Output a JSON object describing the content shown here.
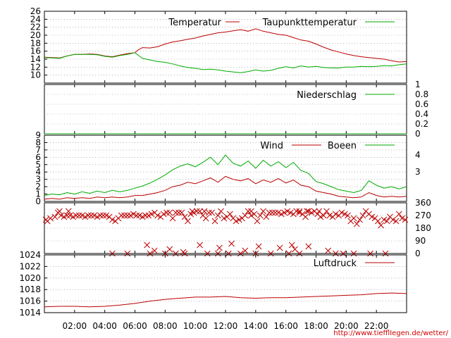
{
  "chart_data": [
    {
      "type": "line",
      "panel": "temperature",
      "ylim": [
        8,
        26
      ],
      "yticks": [
        10,
        12,
        14,
        16,
        18,
        20,
        22,
        24,
        26
      ],
      "grid": true,
      "legend_placement": "top-right",
      "series": [
        {
          "name": "Temperatur",
          "color": "#bb0000",
          "x": [
            0.0,
            0.5,
            1.0,
            1.5,
            2.0,
            2.5,
            3.0,
            3.5,
            4.0,
            4.5,
            5.0,
            5.5,
            6.0,
            6.2,
            6.5,
            7.0,
            7.5,
            8.0,
            8.5,
            9.0,
            9.5,
            10.0,
            10.5,
            11.0,
            11.5,
            12.0,
            12.5,
            13.0,
            13.5,
            14.0,
            14.5,
            15.0,
            15.5,
            16.0,
            16.5,
            17.0,
            17.5,
            18.0,
            18.5,
            19.0,
            19.5,
            20.0,
            20.5,
            21.0,
            21.5,
            22.0,
            22.5,
            23.0,
            23.5,
            24.0
          ],
          "y": [
            14.5,
            14.4,
            14.3,
            14.8,
            15.2,
            15.2,
            15.3,
            15.2,
            14.8,
            14.6,
            15.0,
            15.4,
            15.6,
            16.3,
            16.9,
            16.8,
            17.1,
            17.8,
            18.3,
            18.6,
            19.0,
            19.3,
            19.8,
            20.2,
            20.6,
            20.8,
            21.1,
            21.4,
            21.0,
            21.6,
            21.0,
            20.6,
            20.2,
            20.0,
            19.4,
            18.8,
            18.5,
            17.8,
            17.0,
            16.3,
            15.8,
            15.3,
            14.9,
            14.6,
            14.4,
            14.2,
            14.0,
            13.6,
            13.3,
            13.4
          ]
        },
        {
          "name": "Taupunkttemperatur",
          "color": "#00aa00",
          "x": [
            0.0,
            0.5,
            1.0,
            1.5,
            2.0,
            2.5,
            3.0,
            3.5,
            4.0,
            4.5,
            5.0,
            5.5,
            6.0,
            6.5,
            7.0,
            7.5,
            8.0,
            8.5,
            9.0,
            9.5,
            10.0,
            10.5,
            11.0,
            11.5,
            12.0,
            12.5,
            13.0,
            13.5,
            14.0,
            14.5,
            15.0,
            15.5,
            16.0,
            16.5,
            17.0,
            17.5,
            18.0,
            18.5,
            19.0,
            19.5,
            20.0,
            20.5,
            21.0,
            21.5,
            22.0,
            22.5,
            23.0,
            23.5,
            24.0
          ],
          "y": [
            14.4,
            14.3,
            14.2,
            14.8,
            15.2,
            15.2,
            15.2,
            15.1,
            14.7,
            14.5,
            14.9,
            15.2,
            15.6,
            14.2,
            13.8,
            13.4,
            13.2,
            12.8,
            12.3,
            11.9,
            11.7,
            11.4,
            11.5,
            11.3,
            11.0,
            10.8,
            10.6,
            10.9,
            11.3,
            11.0,
            11.2,
            11.7,
            12.1,
            11.8,
            12.3,
            12.0,
            12.2,
            11.9,
            11.8,
            11.8,
            12.0,
            12.0,
            12.2,
            12.1,
            12.2,
            12.4,
            12.3,
            12.6,
            12.8
          ]
        }
      ]
    },
    {
      "type": "line",
      "panel": "precipitation",
      "ylim": [
        0,
        1
      ],
      "yticks_right": [
        "1",
        "0.8",
        "0.6",
        "0.4",
        "0.2",
        "0"
      ],
      "grid": true,
      "legend_placement": "top-right",
      "series": [
        {
          "name": "Niederschlag",
          "color": "#00aa00",
          "x": [
            0,
            24
          ],
          "y": [
            0,
            0
          ]
        }
      ]
    },
    {
      "type": "line",
      "panel": "wind",
      "ylim": [
        0,
        9
      ],
      "yticks": [
        0,
        1,
        2,
        3,
        4,
        5,
        6,
        7,
        8,
        9
      ],
      "yticks_right": [
        "4",
        "3"
      ],
      "grid": true,
      "legend_placement": "top-right",
      "series": [
        {
          "name": "Wind",
          "color": "#bb0000",
          "x": [
            0.0,
            0.5,
            1.0,
            1.5,
            2.0,
            2.5,
            3.0,
            3.5,
            4.0,
            4.5,
            5.0,
            5.5,
            6.0,
            6.5,
            7.0,
            7.5,
            8.0,
            8.5,
            9.0,
            9.5,
            10.0,
            10.5,
            11.0,
            11.5,
            12.0,
            12.5,
            13.0,
            13.5,
            14.0,
            14.5,
            15.0,
            15.5,
            16.0,
            16.5,
            17.0,
            17.5,
            18.0,
            18.5,
            19.0,
            19.5,
            20.0,
            20.5,
            21.0,
            21.5,
            22.0,
            22.5,
            23.0,
            23.5,
            24.0
          ],
          "y": [
            0.3,
            0.4,
            0.3,
            0.5,
            0.4,
            0.5,
            0.4,
            0.6,
            0.5,
            0.6,
            0.5,
            0.6,
            0.8,
            0.8,
            1.0,
            1.2,
            1.5,
            2.0,
            2.2,
            2.6,
            2.4,
            2.8,
            3.2,
            2.6,
            3.4,
            3.0,
            2.8,
            3.1,
            2.4,
            2.9,
            2.6,
            3.1,
            2.5,
            2.9,
            2.2,
            2.0,
            1.4,
            1.2,
            1.0,
            0.7,
            0.6,
            0.5,
            0.6,
            1.2,
            0.8,
            0.6,
            0.7,
            0.6,
            0.7
          ]
        },
        {
          "name": "Boeen",
          "color": "#00aa00",
          "x": [
            0.0,
            0.5,
            1.0,
            1.5,
            2.0,
            2.5,
            3.0,
            3.5,
            4.0,
            4.5,
            5.0,
            5.5,
            6.0,
            6.5,
            7.0,
            7.5,
            8.0,
            8.5,
            9.0,
            9.5,
            10.0,
            10.5,
            11.0,
            11.5,
            12.0,
            12.5,
            13.0,
            13.5,
            14.0,
            14.5,
            15.0,
            15.5,
            16.0,
            16.5,
            17.0,
            17.5,
            18.0,
            18.5,
            19.0,
            19.5,
            20.0,
            20.5,
            21.0,
            21.5,
            22.0,
            22.5,
            23.0,
            23.5,
            24.0
          ],
          "y": [
            0.8,
            1.0,
            0.9,
            1.2,
            1.0,
            1.3,
            1.1,
            1.4,
            1.2,
            1.5,
            1.3,
            1.5,
            1.8,
            2.1,
            2.5,
            3.0,
            3.6,
            4.3,
            4.8,
            5.1,
            4.7,
            5.3,
            6.0,
            5.0,
            6.3,
            5.2,
            4.8,
            5.5,
            4.5,
            5.6,
            4.8,
            5.4,
            4.6,
            5.3,
            4.2,
            3.8,
            2.7,
            2.4,
            2.0,
            1.6,
            1.4,
            1.2,
            1.5,
            2.8,
            2.2,
            1.8,
            2.0,
            1.7,
            2.0
          ]
        }
      ]
    },
    {
      "type": "scatter",
      "panel": "wind-direction",
      "ylim": [
        0,
        360
      ],
      "yticks_right": [
        "360",
        "270",
        "180",
        "90",
        "0"
      ],
      "grid": true,
      "series": [
        {
          "name": "",
          "color": "#bb0000",
          "marker": "x",
          "x": [
            0.1,
            0.2,
            0.4,
            0.7,
            0.9,
            1.1,
            1.3,
            1.5,
            1.7,
            1.9,
            2.1,
            2.3,
            2.5,
            2.7,
            2.9,
            3.1,
            3.3,
            3.5,
            3.7,
            3.9,
            4.1,
            4.3,
            4.5,
            4.7,
            4.9,
            5.1,
            5.3,
            5.5,
            5.7,
            5.9,
            6.1,
            6.3,
            6.5,
            6.7,
            6.9,
            7.1,
            7.3,
            7.5,
            7.7,
            7.9,
            8.1,
            8.3,
            8.5,
            8.7,
            8.9,
            9.1,
            9.3,
            9.5,
            9.7,
            9.9,
            10.1,
            10.3,
            10.5,
            10.7,
            10.9,
            11.1,
            11.3,
            11.5,
            11.7,
            11.9,
            12.1,
            12.3,
            12.5,
            12.7,
            12.9,
            13.1,
            13.3,
            13.5,
            13.7,
            13.9,
            14.1,
            14.3,
            14.5,
            14.7,
            14.9,
            15.1,
            15.3,
            15.5,
            15.7,
            15.9,
            16.1,
            16.3,
            16.5,
            16.7,
            16.9,
            17.1,
            17.3,
            17.5,
            17.7,
            17.9,
            18.1,
            18.3,
            18.5,
            18.7,
            18.9,
            19.1,
            19.3,
            19.5,
            19.7,
            19.9,
            20.1,
            20.3,
            20.5,
            20.7,
            20.9,
            21.1,
            21.3,
            21.5,
            21.7,
            21.9,
            22.1,
            22.3,
            22.5,
            22.7,
            22.9,
            23.1,
            23.3,
            23.5,
            23.7,
            23.9,
            4.5,
            5.5,
            7.0,
            8.0,
            8.7,
            9.3,
            10.8,
            11.5,
            12.2,
            13.0,
            14.0,
            15.0,
            16.2,
            16.9,
            19.3,
            19.8,
            20.5,
            21.6,
            22.6,
            6.8,
            7.3,
            8.3,
            9.2,
            10.3,
            11.6,
            12.4,
            13.3,
            14.2,
            15.6,
            16.4,
            16.6,
            17.5,
            18.8,
            1.0,
            1.6,
            9.8,
            10.6,
            13.7,
            16.9,
            17.4,
            18.2
          ],
          "y": [
            240,
            230,
            250,
            260,
            290,
            270,
            260,
            270,
            270,
            260,
            270,
            270,
            270,
            260,
            270,
            270,
            270,
            260,
            270,
            270,
            270,
            260,
            240,
            230,
            250,
            270,
            270,
            270,
            270,
            280,
            270,
            270,
            260,
            270,
            270,
            280,
            290,
            270,
            260,
            280,
            290,
            290,
            250,
            290,
            290,
            290,
            260,
            230,
            280,
            290,
            300,
            300,
            270,
            250,
            290,
            290,
            230,
            270,
            300,
            250,
            260,
            280,
            250,
            230,
            240,
            250,
            270,
            300,
            270,
            280,
            230,
            270,
            300,
            260,
            290,
            290,
            290,
            290,
            280,
            290,
            300,
            290,
            280,
            300,
            290,
            280,
            260,
            300,
            290,
            300,
            280,
            260,
            270,
            300,
            270,
            260,
            280,
            270,
            290,
            280,
            270,
            230,
            250,
            210,
            240,
            270,
            300,
            280,
            260,
            250,
            230,
            200,
            240,
            230,
            260,
            240,
            230,
            280,
            250,
            240,
            0,
            0,
            0,
            0,
            0,
            0,
            0,
            0,
            0,
            0,
            0,
            0,
            0,
            0,
            0,
            0,
            0,
            0,
            0,
            60,
            20,
            30,
            10,
            60,
            40,
            70,
            20,
            50,
            40,
            60,
            30,
            50,
            20,
            300,
            300,
            300,
            300,
            300,
            300,
            300,
            300
          ]
        }
      ]
    },
    {
      "type": "line",
      "panel": "pressure",
      "ylim": [
        1014,
        1024
      ],
      "yticks": [
        1014,
        1016,
        1018,
        1020,
        1022,
        1024
      ],
      "grid": true,
      "legend_placement": "top-right",
      "series": [
        {
          "name": "Luftdruck",
          "color": "#bb0000",
          "x": [
            0.0,
            1.0,
            2.0,
            3.0,
            4.0,
            5.0,
            6.0,
            7.0,
            8.0,
            9.0,
            10.0,
            11.0,
            12.0,
            13.0,
            14.0,
            15.0,
            16.0,
            17.0,
            18.0,
            19.0,
            20.0,
            21.0,
            22.0,
            23.0,
            24.0
          ],
          "y": [
            1015.0,
            1015.1,
            1015.1,
            1015.0,
            1015.1,
            1015.3,
            1015.6,
            1016.0,
            1016.3,
            1016.5,
            1016.7,
            1016.7,
            1016.8,
            1016.6,
            1016.5,
            1016.6,
            1016.6,
            1016.7,
            1016.8,
            1016.9,
            1017.0,
            1017.1,
            1017.3,
            1017.4,
            1017.3
          ]
        }
      ]
    }
  ],
  "x_axis": {
    "ticks": [
      {
        "x": 2,
        "label": "02:00"
      },
      {
        "x": 4,
        "label": "04:00"
      },
      {
        "x": 6,
        "label": "06:00"
      },
      {
        "x": 8,
        "label": "08:00"
      },
      {
        "x": 10,
        "label": "10:00"
      },
      {
        "x": 12,
        "label": "12:00"
      },
      {
        "x": 14,
        "label": "14:00"
      },
      {
        "x": 16,
        "label": "16:00"
      },
      {
        "x": 18,
        "label": "18:00"
      },
      {
        "x": 20,
        "label": "20:00"
      },
      {
        "x": 22,
        "label": "22:00"
      }
    ],
    "xlim": [
      0,
      24
    ]
  },
  "footer": {
    "url": "http://www.tiefflIegen.de/wetter/"
  },
  "colors": {
    "red": "#bb0000",
    "green": "#00aa00",
    "grid": "#888888"
  }
}
